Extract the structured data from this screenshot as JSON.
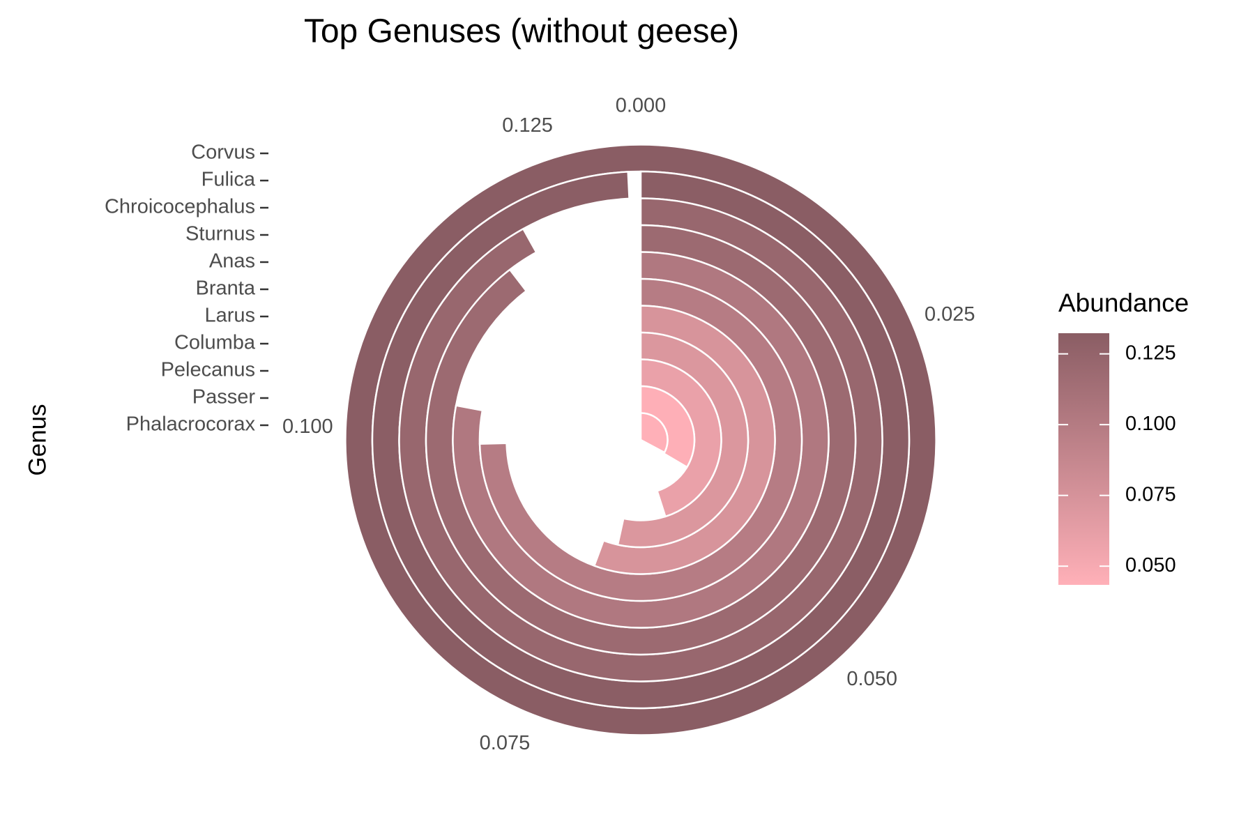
{
  "chart_data": {
    "type": "radial_bar",
    "title": "Top Genuses (without geese)",
    "y_label": "Genus",
    "categories": [
      "Corvus",
      "Fulica",
      "Chroicocephalus",
      "Sturnus",
      "Anas",
      "Branta",
      "Larus",
      "Columba",
      "Pelecanus",
      "Passer",
      "Phalacrocorax"
    ],
    "values": [
      0.1323,
      0.1313,
      0.1216,
      0.1185,
      0.1031,
      0.0987,
      0.0736,
      0.0707,
      0.0596,
      0.0443,
      0.0434
    ],
    "ylim": [
      0,
      0.1323
    ],
    "yticks": [
      {
        "value": 0,
        "label": "0.000"
      },
      {
        "value": 0.025,
        "label": "0.025"
      },
      {
        "value": 0.05,
        "label": "0.050"
      },
      {
        "value": 0.075,
        "label": "0.075"
      },
      {
        "value": 0.1,
        "label": "0.100"
      },
      {
        "value": 0.125,
        "label": "0.125"
      }
    ],
    "legend_title": "Abundance",
    "legend_lim": [
      0.0434,
      0.1323
    ],
    "legend_ticks": [
      {
        "value": 0.05,
        "label": "0.050"
      },
      {
        "value": 0.075,
        "label": "0.075"
      },
      {
        "value": 0.1,
        "label": "0.100"
      },
      {
        "value": 0.125,
        "label": "0.125"
      }
    ],
    "color_low": "#ffb0b8",
    "color_high": "#8a5d64"
  }
}
